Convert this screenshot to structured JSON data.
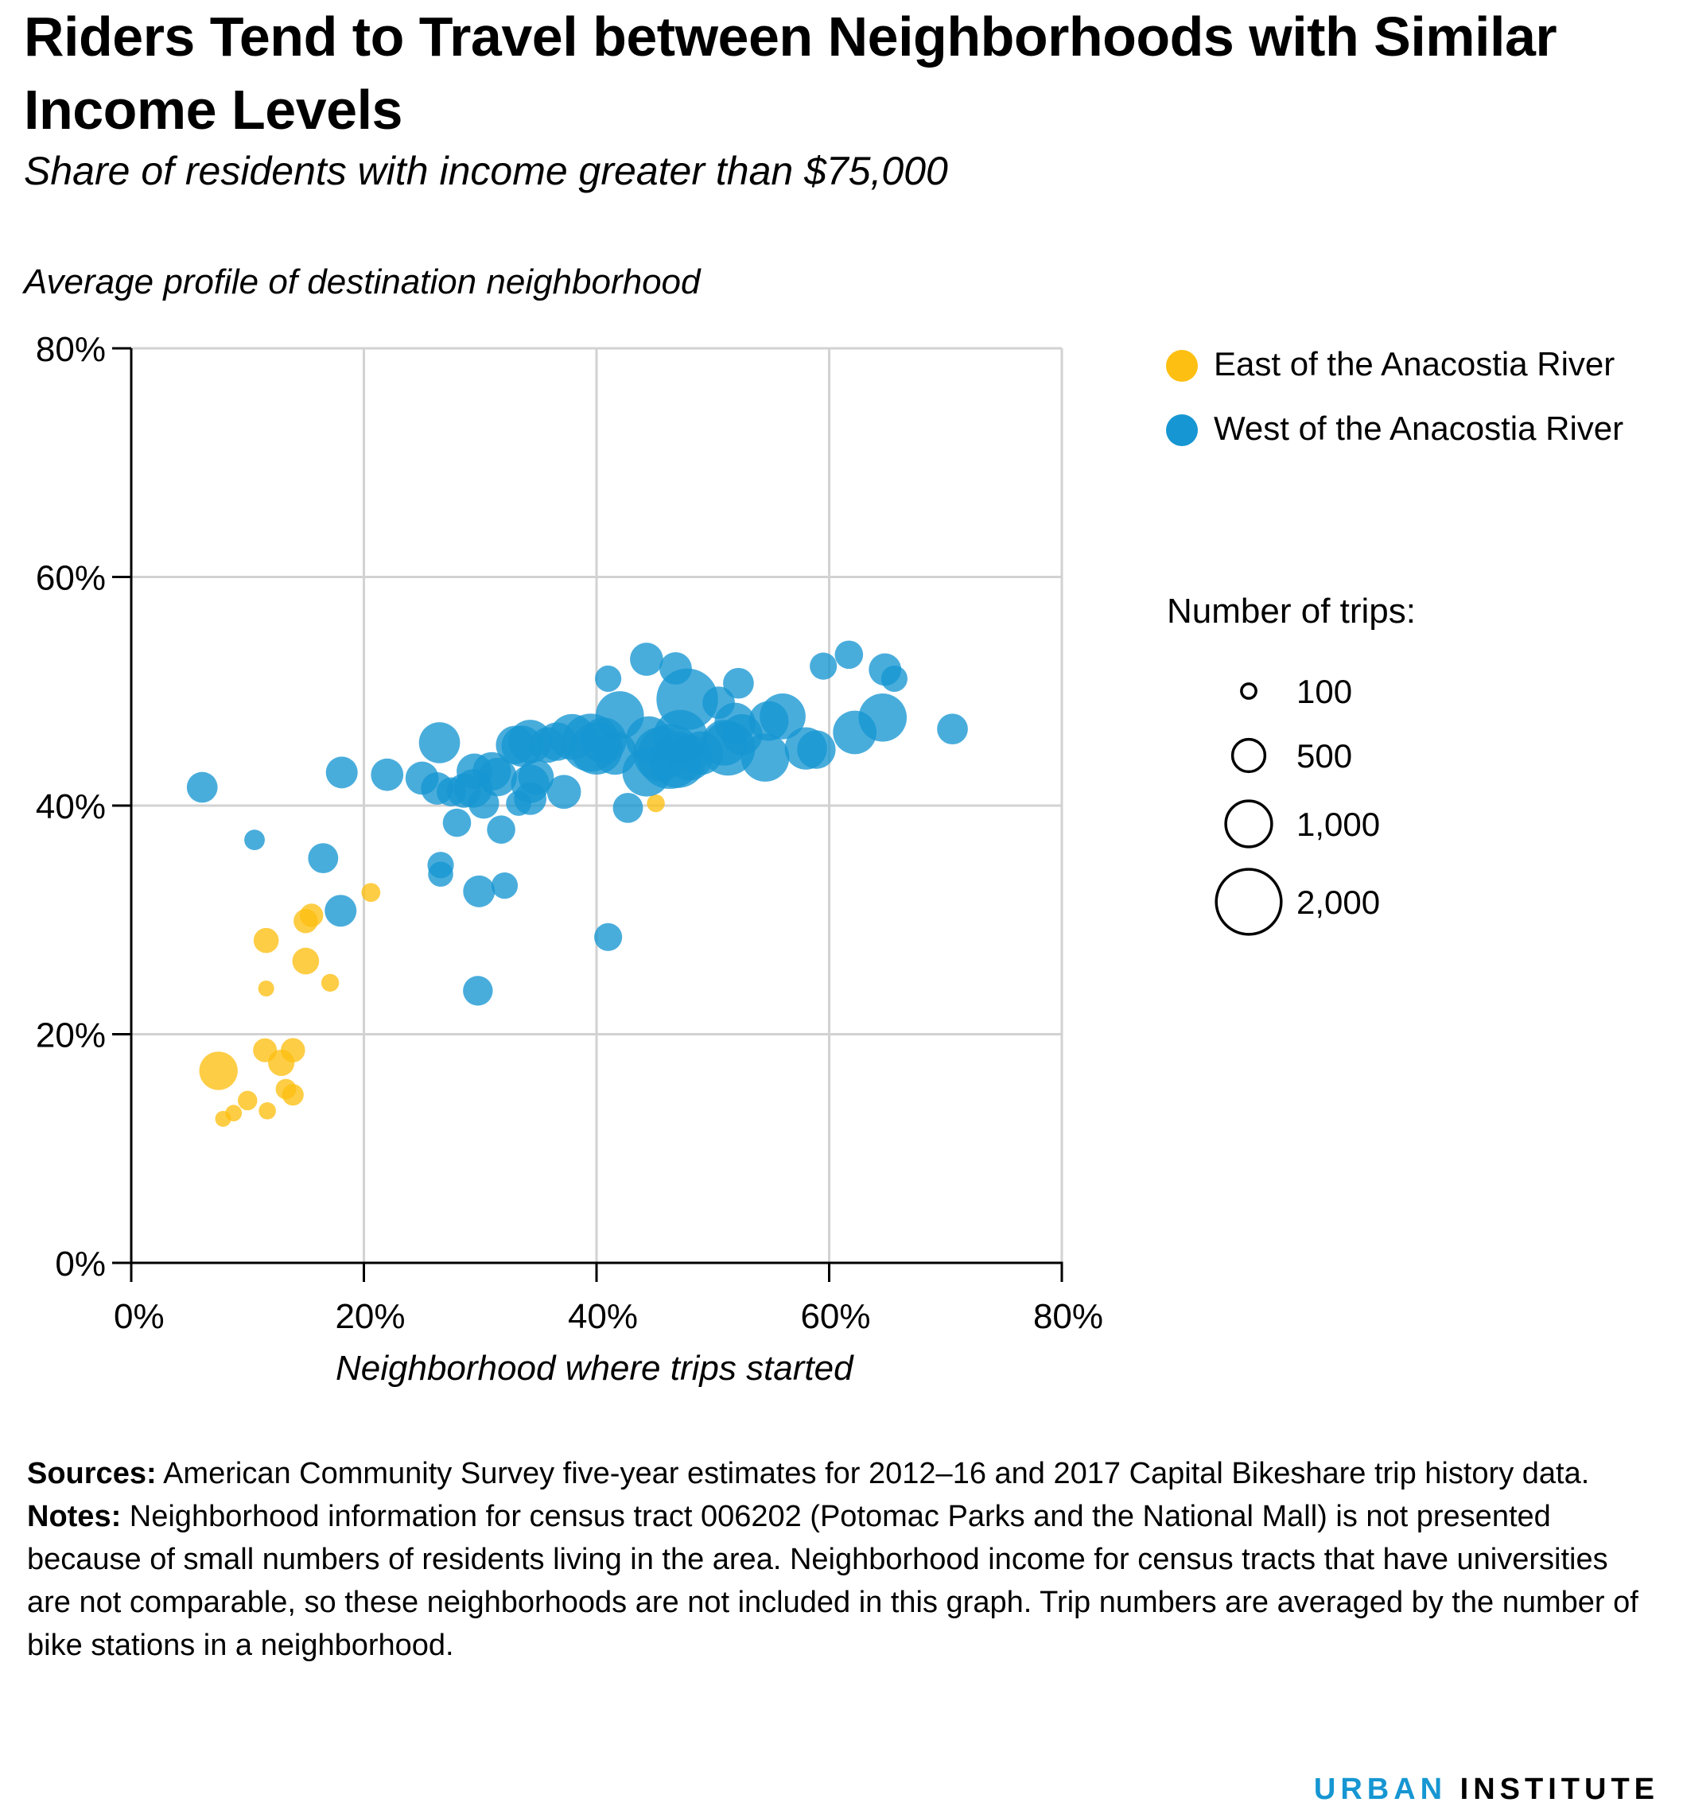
{
  "title": "Riders Tend to Travel between Neighborhoods with Similar Income Levels",
  "subtitle": "Share of residents with income greater than $75,000",
  "colors": {
    "east": "#fdbf11",
    "west": "#1696d2",
    "grid": "#d2d2d2",
    "axis": "#000000"
  },
  "legend": {
    "east_label": "East of the Anacostia River",
    "west_label": "West of the Anacostia River",
    "size_title": "Number of trips:",
    "sizes": [
      {
        "label": "100",
        "value": 100
      },
      {
        "label": "500",
        "value": 500
      },
      {
        "label": "1,000",
        "value": 1000
      },
      {
        "label": "2,000",
        "value": 2000
      }
    ]
  },
  "chart_data": {
    "type": "scatter",
    "xlabel": "Neighborhood where trips started",
    "ylabel": "Average profile of destination neighborhood",
    "xlim": [
      0,
      80
    ],
    "ylim": [
      0,
      80
    ],
    "x_ticks": [
      0,
      20,
      40,
      60,
      80
    ],
    "y_ticks": [
      0,
      20,
      40,
      60,
      80
    ],
    "x_tick_labels": [
      "0%",
      "20%",
      "40%",
      "60%",
      "80%"
    ],
    "y_tick_labels": [
      "0%",
      "20%",
      "40%",
      "60%",
      "80%"
    ],
    "grid": true,
    "legend_position": "right",
    "series": [
      {
        "name": "East of the Anacostia River",
        "color": "#fdbf11",
        "points": [
          {
            "x": 45.1,
            "y": 40.2,
            "trips": 150
          },
          {
            "x": 20.6,
            "y": 32.4,
            "trips": 170
          },
          {
            "x": 15.5,
            "y": 30.4,
            "trips": 260
          },
          {
            "x": 15.0,
            "y": 29.9,
            "trips": 280
          },
          {
            "x": 11.6,
            "y": 28.2,
            "trips": 300
          },
          {
            "x": 15.0,
            "y": 26.4,
            "trips": 340
          },
          {
            "x": 11.6,
            "y": 24.0,
            "trips": 120
          },
          {
            "x": 17.1,
            "y": 24.5,
            "trips": 150
          },
          {
            "x": 11.5,
            "y": 18.6,
            "trips": 270
          },
          {
            "x": 13.9,
            "y": 18.6,
            "trips": 280
          },
          {
            "x": 12.9,
            "y": 17.5,
            "trips": 330
          },
          {
            "x": 7.5,
            "y": 16.8,
            "trips": 700
          },
          {
            "x": 13.3,
            "y": 15.2,
            "trips": 200
          },
          {
            "x": 13.9,
            "y": 14.7,
            "trips": 220
          },
          {
            "x": 10.0,
            "y": 14.2,
            "trips": 180
          },
          {
            "x": 8.8,
            "y": 13.1,
            "trips": 130
          },
          {
            "x": 11.7,
            "y": 13.3,
            "trips": 140
          },
          {
            "x": 7.9,
            "y": 12.6,
            "trips": 120
          }
        ]
      },
      {
        "name": "West of the Anacostia River",
        "color": "#1696d2",
        "points": [
          {
            "x": 6.1,
            "y": 41.6,
            "trips": 450
          },
          {
            "x": 10.6,
            "y": 37.0,
            "trips": 200
          },
          {
            "x": 16.5,
            "y": 35.4,
            "trips": 430
          },
          {
            "x": 18.0,
            "y": 30.8,
            "trips": 480
          },
          {
            "x": 18.1,
            "y": 42.9,
            "trips": 480
          },
          {
            "x": 22.0,
            "y": 42.7,
            "trips": 500
          },
          {
            "x": 25.0,
            "y": 42.4,
            "trips": 520
          },
          {
            "x": 26.3,
            "y": 41.5,
            "trips": 500
          },
          {
            "x": 27.5,
            "y": 41.2,
            "trips": 400
          },
          {
            "x": 26.5,
            "y": 45.5,
            "trips": 800
          },
          {
            "x": 28.6,
            "y": 41.3,
            "trips": 550
          },
          {
            "x": 29.4,
            "y": 41.5,
            "trips": 700
          },
          {
            "x": 29.5,
            "y": 43.0,
            "trips": 600
          },
          {
            "x": 31.0,
            "y": 43.0,
            "trips": 700
          },
          {
            "x": 31.5,
            "y": 42.5,
            "trips": 700
          },
          {
            "x": 30.3,
            "y": 40.2,
            "trips": 450
          },
          {
            "x": 28.0,
            "y": 38.5,
            "trips": 380
          },
          {
            "x": 31.8,
            "y": 37.9,
            "trips": 380
          },
          {
            "x": 26.6,
            "y": 34.8,
            "trips": 330
          },
          {
            "x": 26.6,
            "y": 34.0,
            "trips": 300
          },
          {
            "x": 29.9,
            "y": 32.5,
            "trips": 480
          },
          {
            "x": 32.1,
            "y": 33.0,
            "trips": 330
          },
          {
            "x": 29.8,
            "y": 23.8,
            "trips": 420
          },
          {
            "x": 33.3,
            "y": 40.2,
            "trips": 300
          },
          {
            "x": 34.3,
            "y": 40.6,
            "trips": 500
          },
          {
            "x": 34.3,
            "y": 41.9,
            "trips": 700
          },
          {
            "x": 34.8,
            "y": 42.5,
            "trips": 600
          },
          {
            "x": 33.6,
            "y": 45.2,
            "trips": 800
          },
          {
            "x": 33.0,
            "y": 45.3,
            "trips": 700
          },
          {
            "x": 34.3,
            "y": 45.6,
            "trips": 900
          },
          {
            "x": 35.8,
            "y": 45.3,
            "trips": 600
          },
          {
            "x": 37.2,
            "y": 41.2,
            "trips": 550
          },
          {
            "x": 36.6,
            "y": 45.6,
            "trips": 700
          },
          {
            "x": 37.9,
            "y": 46.0,
            "trips": 1000
          },
          {
            "x": 39.5,
            "y": 45.5,
            "trips": 1600
          },
          {
            "x": 40.0,
            "y": 45.0,
            "trips": 1300
          },
          {
            "x": 40.6,
            "y": 45.7,
            "trips": 1000
          },
          {
            "x": 41.6,
            "y": 44.6,
            "trips": 900
          },
          {
            "x": 41.0,
            "y": 51.1,
            "trips": 330
          },
          {
            "x": 41.0,
            "y": 28.5,
            "trips": 370
          },
          {
            "x": 42.7,
            "y": 39.8,
            "trips": 430
          },
          {
            "x": 42.0,
            "y": 47.9,
            "trips": 1100
          },
          {
            "x": 44.3,
            "y": 52.8,
            "trips": 520
          },
          {
            "x": 44.5,
            "y": 45.8,
            "trips": 1000
          },
          {
            "x": 44.3,
            "y": 42.9,
            "trips": 1100
          },
          {
            "x": 45.5,
            "y": 44.5,
            "trips": 1400
          },
          {
            "x": 46.3,
            "y": 44.3,
            "trips": 2000
          },
          {
            "x": 47.0,
            "y": 44.0,
            "trips": 1500
          },
          {
            "x": 46.8,
            "y": 52.0,
            "trips": 500
          },
          {
            "x": 47.2,
            "y": 46.0,
            "trips": 1400
          },
          {
            "x": 47.8,
            "y": 49.3,
            "trips": 1800
          },
          {
            "x": 48.0,
            "y": 44.2,
            "trips": 1000
          },
          {
            "x": 49.0,
            "y": 44.6,
            "trips": 900
          },
          {
            "x": 50.5,
            "y": 49.0,
            "trips": 500
          },
          {
            "x": 51.0,
            "y": 45.5,
            "trips": 1000
          },
          {
            "x": 51.3,
            "y": 45.0,
            "trips": 1400
          },
          {
            "x": 51.9,
            "y": 47.2,
            "trips": 800
          },
          {
            "x": 52.2,
            "y": 50.7,
            "trips": 450
          },
          {
            "x": 52.5,
            "y": 46.2,
            "trips": 800
          },
          {
            "x": 54.5,
            "y": 44.2,
            "trips": 1100
          },
          {
            "x": 54.8,
            "y": 47.4,
            "trips": 750
          },
          {
            "x": 56.0,
            "y": 47.8,
            "trips": 1000
          },
          {
            "x": 58.0,
            "y": 45.0,
            "trips": 850
          },
          {
            "x": 58.9,
            "y": 44.9,
            "trips": 700
          },
          {
            "x": 59.5,
            "y": 52.2,
            "trips": 350
          },
          {
            "x": 61.7,
            "y": 53.2,
            "trips": 380
          },
          {
            "x": 62.2,
            "y": 46.4,
            "trips": 900
          },
          {
            "x": 64.6,
            "y": 47.7,
            "trips": 1100
          },
          {
            "x": 64.8,
            "y": 51.9,
            "trips": 500
          },
          {
            "x": 65.6,
            "y": 51.1,
            "trips": 330
          },
          {
            "x": 70.6,
            "y": 46.7,
            "trips": 450
          }
        ]
      }
    ]
  },
  "notes": {
    "sources_label": "Sources:",
    "sources_text": " American Community Survey five-year estimates for 2012–16 and 2017 Capital Bikeshare trip history data.",
    "notes_label": "Notes:",
    "notes_text": " Neighborhood information for census tract 006202 (Potomac Parks and the National Mall) is not presented because of small numbers of residents living in the area. Neighborhood income for census tracts that have universities are not comparable, so these neighborhoods are not included in this graph. Trip numbers are averaged by the number of bike stations in a neighborhood."
  },
  "logo": {
    "part1": "URBAN",
    "part2": "INSTITUTE"
  }
}
